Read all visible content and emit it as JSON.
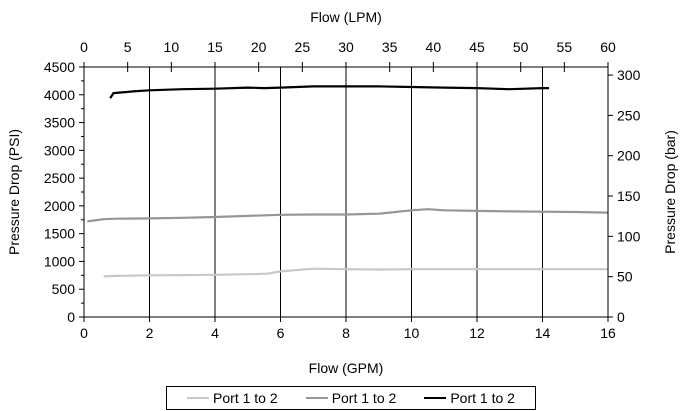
{
  "chart_data": {
    "type": "line",
    "xlabel_bottom": "Flow (GPM)",
    "xlabel_top": "Flow (LPM)",
    "ylabel_left": "Pressure Drop (PSI)",
    "ylabel_right": "Pressure Drop (bar)",
    "x_bottom_range": [
      0,
      16
    ],
    "x_top_range": [
      0,
      60
    ],
    "y_left_range": [
      0,
      4500
    ],
    "y_right_range": [
      0,
      310
    ],
    "x_bottom_ticks": [
      "0",
      "2",
      "4",
      "6",
      "8",
      "10",
      "12",
      "14",
      "16"
    ],
    "x_top_ticks": [
      "0",
      "5",
      "10",
      "15",
      "20",
      "25",
      "30",
      "35",
      "40",
      "45",
      "50",
      "55",
      "60"
    ],
    "y_left_ticks": [
      "0",
      "500",
      "1000",
      "1500",
      "2000",
      "2500",
      "3000",
      "3500",
      "4000",
      "4500"
    ],
    "y_right_ticks": [
      "0",
      "50",
      "100",
      "150",
      "200",
      "250",
      "300"
    ],
    "grid": "vertical",
    "legend_position": "bottom",
    "series": [
      {
        "name": "Port 1 to 2",
        "color": "#c8c8c8",
        "x": [
          0.6,
          1.0,
          2.0,
          3.0,
          4.0,
          5.0,
          5.6,
          6.0,
          7.0,
          8.0,
          9.0,
          10.0,
          11.0,
          12.0,
          13.0,
          14.0,
          15.0,
          16.0
        ],
        "y": [
          730,
          740,
          750,
          755,
          760,
          770,
          780,
          820,
          870,
          860,
          855,
          860,
          860,
          860,
          860,
          860,
          860,
          860
        ]
      },
      {
        "name": "Port 1 to 2",
        "color": "#969696",
        "x": [
          0.1,
          0.6,
          1.0,
          2.0,
          3.0,
          4.0,
          5.0,
          6.0,
          7.0,
          8.0,
          9.0,
          10.0,
          10.5,
          11.0,
          12.0,
          13.0,
          14.0,
          15.0,
          16.0
        ],
        "y": [
          1720,
          1760,
          1770,
          1775,
          1785,
          1800,
          1820,
          1840,
          1845,
          1845,
          1860,
          1920,
          1940,
          1920,
          1910,
          1900,
          1895,
          1890,
          1880
        ]
      },
      {
        "name": "Port 1 to 2",
        "color": "#000000",
        "x": [
          0.8,
          0.9,
          1.5,
          2.0,
          3.0,
          4.0,
          5.0,
          5.5,
          6.0,
          7.0,
          8.0,
          9.0,
          10.0,
          11.0,
          12.0,
          13.0,
          14.0,
          14.2
        ],
        "y": [
          3940,
          4030,
          4060,
          4080,
          4100,
          4110,
          4130,
          4120,
          4130,
          4150,
          4150,
          4150,
          4140,
          4130,
          4120,
          4100,
          4120,
          4120
        ]
      }
    ]
  }
}
